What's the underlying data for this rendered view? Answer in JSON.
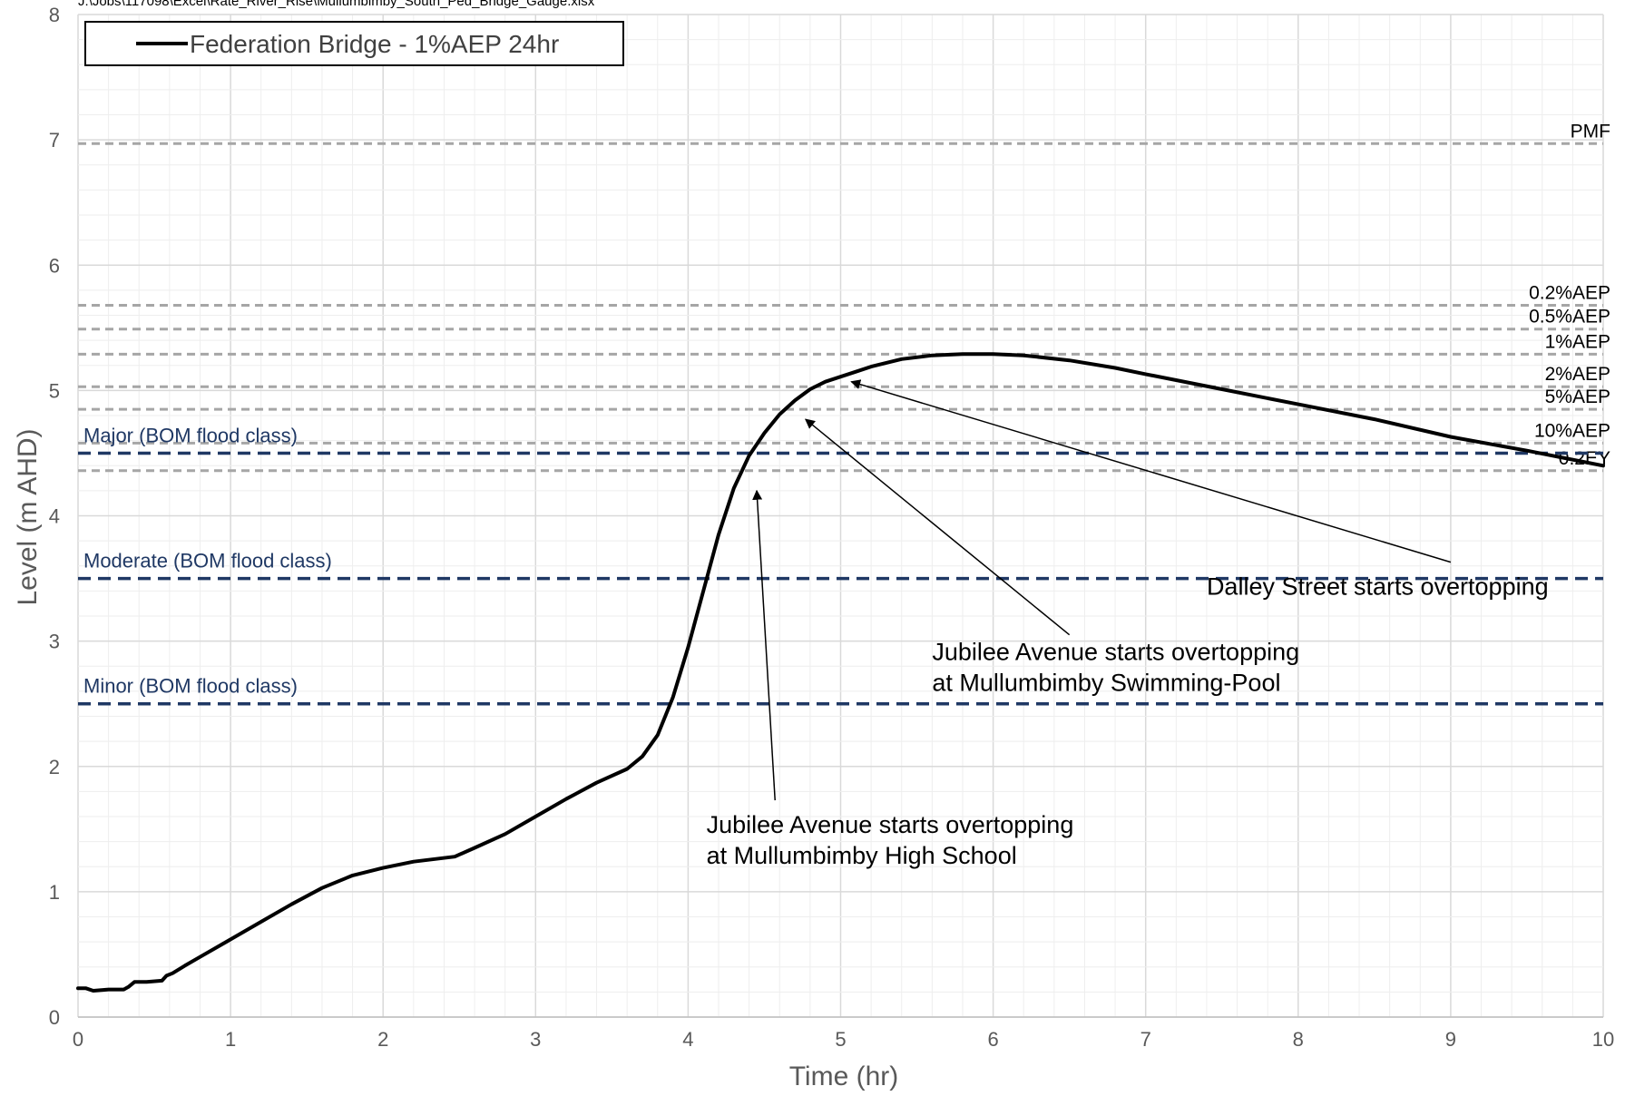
{
  "file_path": "J:\\Jobs\\117098\\Excel\\Rate_River_Rise\\Mullumbimby_South_Ped_Bridge_Gauge.xlsx",
  "chart_data": {
    "type": "line",
    "xlabel": "Time (hr)",
    "ylabel": "Level (m AHD)",
    "xlim": [
      0,
      10
    ],
    "ylim": [
      0,
      8
    ],
    "x_ticks": [
      "0",
      "1",
      "2",
      "3",
      "4",
      "5",
      "6",
      "7",
      "8",
      "9",
      "10"
    ],
    "y_ticks": [
      "0",
      "1",
      "2",
      "3",
      "4",
      "5",
      "6",
      "7",
      "8"
    ],
    "grid": true,
    "legend": {
      "position": "top-left",
      "entries": [
        "Federation Bridge - 1%AEP 24hr"
      ]
    },
    "series": [
      {
        "name": "Federation Bridge - 1%AEP 24hr",
        "color": "#000000",
        "x": [
          0,
          0.05,
          0.1,
          0.2,
          0.3,
          0.33,
          0.37,
          0.45,
          0.55,
          0.58,
          0.62,
          0.7,
          0.8,
          1.0,
          1.2,
          1.4,
          1.6,
          1.8,
          2.0,
          2.2,
          2.47,
          2.6,
          2.8,
          3.0,
          3.2,
          3.4,
          3.6,
          3.7,
          3.8,
          3.9,
          4.0,
          4.1,
          4.2,
          4.3,
          4.4,
          4.5,
          4.6,
          4.7,
          4.8,
          4.9,
          5.0,
          5.1,
          5.2,
          5.4,
          5.6,
          5.8,
          6.0,
          6.2,
          6.5,
          6.8,
          7.0,
          7.5,
          8.0,
          8.5,
          9.0,
          9.5,
          10.0
        ],
        "values": [
          0.23,
          0.23,
          0.21,
          0.22,
          0.22,
          0.24,
          0.28,
          0.28,
          0.29,
          0.33,
          0.35,
          0.41,
          0.48,
          0.62,
          0.76,
          0.9,
          1.03,
          1.13,
          1.19,
          1.24,
          1.28,
          1.35,
          1.46,
          1.6,
          1.74,
          1.87,
          1.98,
          2.08,
          2.25,
          2.55,
          2.95,
          3.4,
          3.85,
          4.22,
          4.48,
          4.66,
          4.81,
          4.92,
          5.01,
          5.07,
          5.11,
          5.15,
          5.19,
          5.25,
          5.28,
          5.29,
          5.29,
          5.28,
          5.24,
          5.18,
          5.13,
          5.01,
          4.89,
          4.77,
          4.63,
          4.52,
          4.4
        ]
      }
    ],
    "reference_lines": [
      {
        "label": "PMF",
        "y": 6.97,
        "color": "#a6a6a6"
      },
      {
        "label": "0.2%AEP",
        "y": 5.68,
        "color": "#a6a6a6"
      },
      {
        "label": "0.5%AEP",
        "y": 5.49,
        "color": "#a6a6a6"
      },
      {
        "label": "1%AEP",
        "y": 5.29,
        "color": "#a6a6a6"
      },
      {
        "label": "2%AEP",
        "y": 5.03,
        "color": "#a6a6a6"
      },
      {
        "label": "5%AEP",
        "y": 4.85,
        "color": "#a6a6a6"
      },
      {
        "label": "10%AEP",
        "y": 4.58,
        "color": "#a6a6a6"
      },
      {
        "label": "0.2EY",
        "y": 4.36,
        "color": "#a6a6a6"
      }
    ],
    "flood_classes": [
      {
        "label": "Major (BOM flood class)",
        "y": 4.5,
        "color": "#1f3864"
      },
      {
        "label": "Moderate (BOM flood class)",
        "y": 3.5,
        "color": "#1f3864"
      },
      {
        "label": "Minor (BOM flood class)",
        "y": 2.5,
        "color": "#1f3864"
      }
    ],
    "annotations": [
      {
        "lines": [
          "Dalley Street starts overtopping"
        ],
        "text_x": 7.4,
        "text_y": 3.37,
        "arrow_from": [
          9.0,
          3.63
        ],
        "arrow_to": [
          5.07,
          5.07
        ]
      },
      {
        "lines": [
          "Jubilee Avenue starts overtopping",
          "at Mullumbimby Swimming-Pool"
        ],
        "text_x": 5.6,
        "text_y": 2.85,
        "arrow_from": [
          6.5,
          3.05
        ],
        "arrow_to": [
          4.77,
          4.77
        ]
      },
      {
        "lines": [
          "Jubilee Avenue starts overtopping",
          "at Mullumbimby High School"
        ],
        "text_x": 4.12,
        "text_y": 1.47,
        "arrow_from": [
          4.57,
          1.73
        ],
        "arrow_to": [
          4.45,
          4.2
        ]
      }
    ]
  }
}
